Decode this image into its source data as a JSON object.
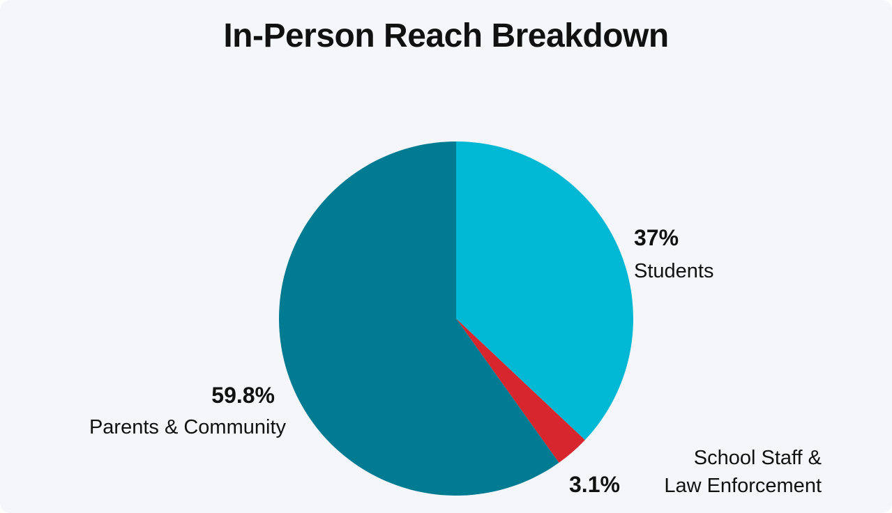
{
  "chart_data": {
    "type": "pie",
    "title": "In-Person Reach Breakdown",
    "slices": [
      {
        "label": "Students",
        "value": 37,
        "value_label": "37%",
        "color": "#00b7d4"
      },
      {
        "label": "School Staff & Law Enforcement",
        "label_lines": [
          "School Staff &",
          "Law Enforcement"
        ],
        "value": 3.1,
        "value_label": "3.1%",
        "color": "#d8262e"
      },
      {
        "label": "Parents & Community",
        "value": 59.8,
        "value_label": "59.8%",
        "color": "#007b91"
      }
    ],
    "start_angle": "12 o'clock",
    "direction": "clockwise"
  },
  "colors": {
    "background": "#f4f6fa",
    "text": "#111111"
  }
}
